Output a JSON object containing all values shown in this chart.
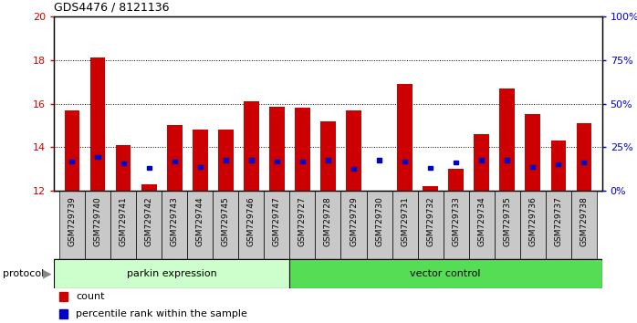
{
  "title": "GDS4476 / 8121136",
  "samples": [
    "GSM729739",
    "GSM729740",
    "GSM729741",
    "GSM729742",
    "GSM729743",
    "GSM729744",
    "GSM729745",
    "GSM729746",
    "GSM729747",
    "GSM729727",
    "GSM729728",
    "GSM729729",
    "GSM729730",
    "GSM729731",
    "GSM729732",
    "GSM729733",
    "GSM729734",
    "GSM729735",
    "GSM729736",
    "GSM729737",
    "GSM729738"
  ],
  "count_values": [
    15.7,
    18.1,
    14.1,
    12.3,
    15.0,
    14.8,
    14.8,
    16.1,
    15.85,
    15.8,
    15.2,
    15.7,
    12.0,
    16.9,
    12.2,
    13.0,
    14.6,
    16.7,
    15.5,
    14.3,
    15.1
  ],
  "percentile_values": [
    13.35,
    13.55,
    13.25,
    13.05,
    13.35,
    13.1,
    13.4,
    13.4,
    13.35,
    13.35,
    13.4,
    13.0,
    13.4,
    13.35,
    13.05,
    13.3,
    13.4,
    13.4,
    13.1,
    13.2,
    13.3
  ],
  "group1_count": 9,
  "group2_count": 12,
  "group1_label": "parkin expression",
  "group2_label": "vector control",
  "protocol_label": "protocol",
  "ylim_left": [
    12,
    20
  ],
  "ylim_right": [
    0,
    100
  ],
  "yticks_left": [
    12,
    14,
    16,
    18,
    20
  ],
  "yticks_right": [
    0,
    25,
    50,
    75,
    100
  ],
  "bar_color": "#cc0000",
  "percentile_color": "#0000cc",
  "bar_width": 0.6,
  "plot_bg_color": "#ffffff",
  "xtick_bg_color": "#c8c8c8",
  "group1_color": "#ccffcc",
  "group2_color": "#55dd55",
  "legend_count_label": "count",
  "legend_percentile_label": "percentile rank within the sample"
}
